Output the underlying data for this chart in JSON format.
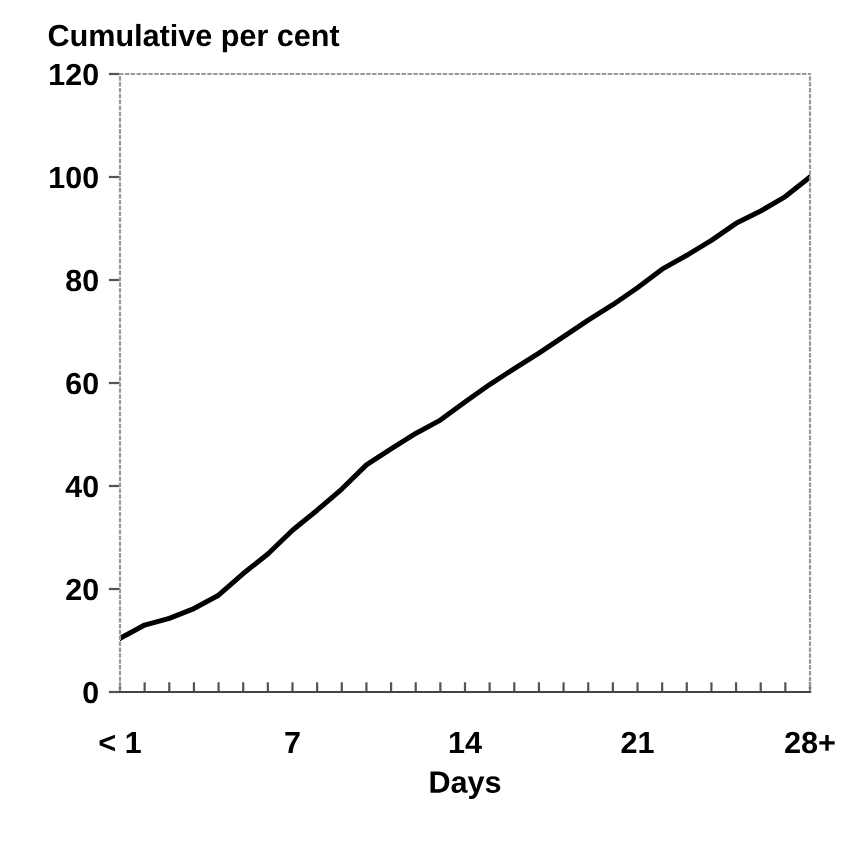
{
  "chart_data": {
    "type": "line",
    "ylabel": "Cumulative per cent",
    "xlabel": "Days",
    "categories": [
      "< 1",
      null,
      null,
      null,
      null,
      null,
      null,
      "7",
      null,
      null,
      null,
      null,
      null,
      null,
      "14",
      null,
      null,
      null,
      null,
      null,
      null,
      "21",
      null,
      null,
      null,
      null,
      null,
      null,
      "28+"
    ],
    "series": [
      {
        "color": "#000000",
        "values": [
          10.4,
          13,
          14.3,
          16.2,
          18.8,
          23,
          26.8,
          31.4,
          35.3,
          39.4,
          44.1,
          47.2,
          50.2,
          52.8,
          56.3,
          59.7,
          62.8,
          65.8,
          69,
          72.2,
          75.2,
          78.5,
          82.1,
          84.8,
          87.7,
          91,
          93.4,
          96.2,
          100
        ]
      }
    ],
    "ylim": [
      0,
      120
    ],
    "yticks": [
      0,
      20,
      40,
      60,
      80,
      100,
      120
    ],
    "grid": false,
    "legend": false,
    "marker": "none",
    "line_style": "solid"
  }
}
